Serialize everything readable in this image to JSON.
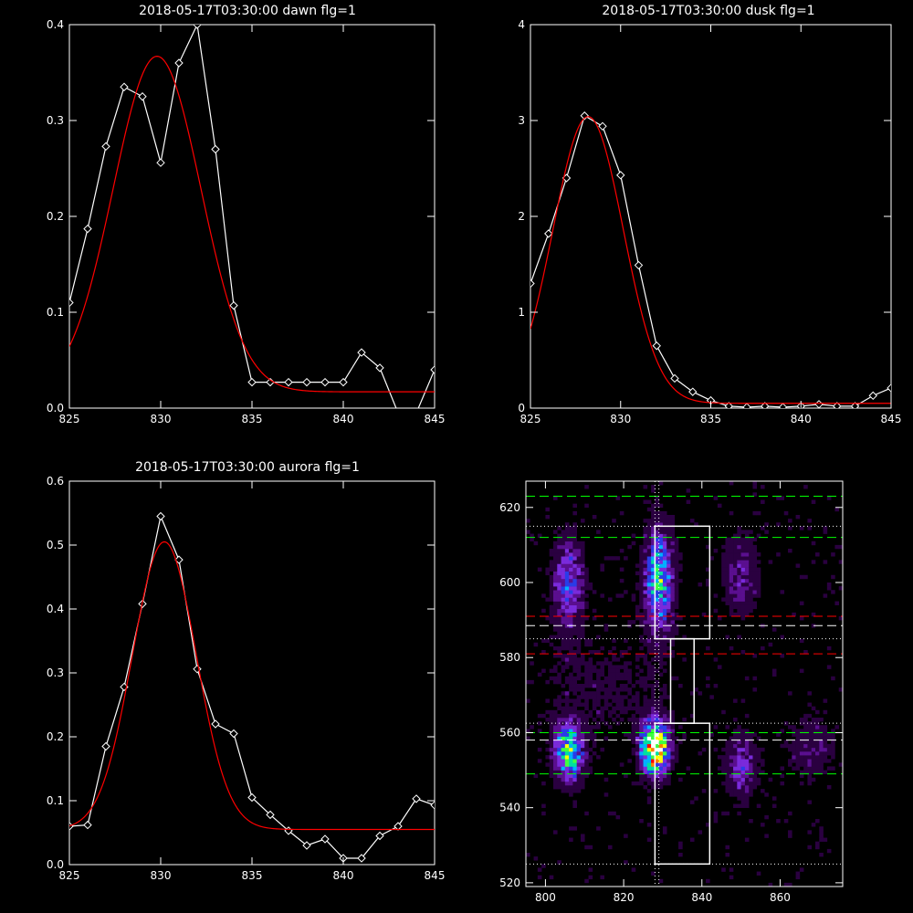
{
  "chart_data": [
    {
      "id": "dawn",
      "type": "line",
      "title": "2018-05-17T03:30:00 dawn flg=1",
      "xlabel": "",
      "ylabel": "",
      "xlim": [
        825,
        845
      ],
      "ylim": [
        0,
        0.4
      ],
      "xticks": [
        "825",
        "830",
        "835",
        "840",
        "845"
      ],
      "yticks": [
        "0.0",
        "0.1",
        "0.2",
        "0.3",
        "0.4"
      ],
      "series": [
        {
          "style": "data",
          "color": "#ffffff",
          "marker": "diamond",
          "x": [
            825,
            826,
            827,
            828,
            829,
            830,
            831,
            832,
            833,
            834,
            835,
            836,
            837,
            838,
            839,
            840,
            841,
            842,
            843,
            844,
            845
          ],
          "y": [
            0.11,
            0.187,
            0.273,
            0.335,
            0.325,
            0.256,
            0.36,
            0.4,
            0.27,
            0.107,
            0.027,
            0.027,
            0.027,
            0.027,
            0.027,
            0.027,
            0.058,
            0.042,
            -0.005,
            -0.005,
            0.04
          ]
        },
        {
          "style": "fit",
          "color": "#ff0000",
          "marker": "none",
          "gauss": {
            "amplitude": 0.35,
            "center": 829.8,
            "sigma": 2.4,
            "baseline": 0.017
          }
        }
      ]
    },
    {
      "id": "dusk",
      "type": "line",
      "title": "2018-05-17T03:30:00 dusk flg=1",
      "xlabel": "",
      "ylabel": "",
      "xlim": [
        825,
        845
      ],
      "ylim": [
        0,
        4
      ],
      "xticks": [
        "825",
        "830",
        "835",
        "840",
        "845"
      ],
      "yticks": [
        "0",
        "1",
        "2",
        "3",
        "4"
      ],
      "series": [
        {
          "style": "data",
          "color": "#ffffff",
          "marker": "diamond",
          "x": [
            825,
            826,
            827,
            828,
            829,
            830,
            831,
            832,
            833,
            834,
            835,
            836,
            837,
            838,
            839,
            840,
            841,
            842,
            843,
            844,
            845
          ],
          "y": [
            1.3,
            1.82,
            2.4,
            3.05,
            2.94,
            2.43,
            1.49,
            0.65,
            0.31,
            0.17,
            0.08,
            0.02,
            0.01,
            0.02,
            0.01,
            0.02,
            0.04,
            0.02,
            0.02,
            0.13,
            0.21
          ]
        },
        {
          "style": "fit",
          "color": "#ff0000",
          "marker": "none",
          "gauss": {
            "amplitude": 2.99,
            "center": 828.2,
            "sigma": 1.95,
            "baseline": 0.05
          }
        }
      ]
    },
    {
      "id": "aurora",
      "type": "line",
      "title": "2018-05-17T03:30:00 aurora flg=1",
      "xlabel": "",
      "ylabel": "",
      "xlim": [
        825,
        845
      ],
      "ylim": [
        0,
        0.6
      ],
      "xticks": [
        "825",
        "830",
        "835",
        "840",
        "845"
      ],
      "yticks": [
        "0.0",
        "0.1",
        "0.2",
        "0.3",
        "0.4",
        "0.5",
        "0.6"
      ],
      "series": [
        {
          "style": "data",
          "color": "#ffffff",
          "marker": "diamond",
          "x": [
            825,
            826,
            827,
            828,
            829,
            830,
            831,
            832,
            833,
            834,
            835,
            836,
            837,
            838,
            839,
            840,
            841,
            842,
            843,
            844,
            845
          ],
          "y": [
            0.06,
            0.062,
            0.185,
            0.278,
            0.408,
            0.545,
            0.477,
            0.306,
            0.22,
            0.205,
            0.105,
            0.078,
            0.053,
            0.03,
            0.04,
            0.01,
            0.01,
            0.045,
            0.06,
            0.103,
            0.093
          ]
        },
        {
          "style": "fit",
          "color": "#ff0000",
          "marker": "none",
          "gauss": {
            "amplitude": 0.45,
            "center": 830.2,
            "sigma": 1.75,
            "baseline": 0.055
          }
        }
      ]
    },
    {
      "id": "image",
      "type": "heatmap",
      "title": "",
      "xlabel": "",
      "ylabel": "",
      "xlim": [
        795,
        876
      ],
      "ylim": [
        519,
        627
      ],
      "xticks": [
        "800",
        "820",
        "840",
        "860"
      ],
      "yticks": [
        "520",
        "540",
        "560",
        "580",
        "600",
        "620"
      ],
      "colormap": [
        "#000000",
        "#2a0040",
        "#5a0f8f",
        "#7a2adb",
        "#2a3ce8",
        "#00b0ff",
        "#00e0a0",
        "#40ff40",
        "#ffff00",
        "#ff8000",
        "#ff0000",
        "#ffffff"
      ],
      "blobs": [
        {
          "x": 806,
          "y": 555,
          "sx": 2.4,
          "sy": 5.0,
          "peak": 0.62
        },
        {
          "x": 806,
          "y": 600,
          "sx": 2.6,
          "sy": 8.0,
          "peak": 0.33
        },
        {
          "x": 828,
          "y": 556,
          "sx": 2.3,
          "sy": 4.5,
          "peak": 1.0
        },
        {
          "x": 829,
          "y": 601,
          "sx": 2.4,
          "sy": 9.0,
          "peak": 0.52
        },
        {
          "x": 850,
          "y": 551,
          "sx": 2.6,
          "sy": 5.5,
          "peak": 0.25
        },
        {
          "x": 850,
          "y": 602,
          "sx": 3.0,
          "sy": 7.0,
          "peak": 0.18
        },
        {
          "x": 868,
          "y": 556,
          "sx": 4.0,
          "sy": 6.0,
          "peak": 0.12
        },
        {
          "x": 815,
          "y": 572,
          "sx": 14.0,
          "sy": 10.0,
          "peak": 0.06
        }
      ],
      "hlines": [
        {
          "y": 623,
          "color": "#00ff00",
          "dash": "dashed"
        },
        {
          "y": 612,
          "color": "#00ff00",
          "dash": "dashed"
        },
        {
          "y": 591,
          "color": "#ff0000",
          "dash": "dashed"
        },
        {
          "y": 588.5,
          "color": "#ffffff",
          "dash": "dashed"
        },
        {
          "y": 581,
          "color": "#ff0000",
          "dash": "dashed"
        },
        {
          "y": 560,
          "color": "#00ff00",
          "dash": "dashed"
        },
        {
          "y": 558,
          "color": "#ffffff",
          "dash": "dashed"
        },
        {
          "y": 549,
          "color": "#00ff00",
          "dash": "dashed"
        },
        {
          "y": 615,
          "color": "#ffffff",
          "dash": "dotted"
        },
        {
          "y": 585,
          "color": "#ffffff",
          "dash": "dotted"
        },
        {
          "y": 562.5,
          "color": "#ffffff",
          "dash": "dotted"
        },
        {
          "y": 525,
          "color": "#ffffff",
          "dash": "dotted"
        }
      ],
      "vlines": [
        {
          "x": 828,
          "color": "#ffffff",
          "dash": "dotted"
        },
        {
          "x": 829,
          "color": "#ffffff",
          "dash": "dotted"
        }
      ],
      "boxes": [
        {
          "x0": 828,
          "x1": 842,
          "y0": 585,
          "y1": 615
        },
        {
          "x0": 828,
          "x1": 842,
          "y0": 525,
          "y1": 562.5
        },
        {
          "x0": 832,
          "x1": 838,
          "y0": 562.5,
          "y1": 585
        }
      ]
    }
  ]
}
